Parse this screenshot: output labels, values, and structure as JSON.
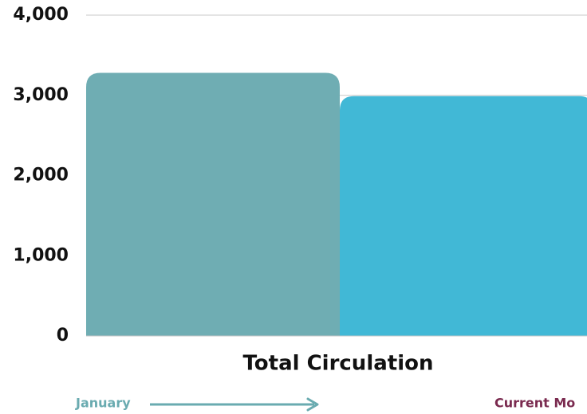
{
  "chart_data": {
    "type": "bar",
    "categories": [
      "Total Circulation"
    ],
    "series": [
      {
        "name": "January",
        "color": "#6fadb3",
        "values": [
          3280
        ]
      },
      {
        "name": "Current Mo",
        "color": "#41b8d6",
        "values": [
          2990
        ]
      }
    ],
    "ylim": [
      0,
      4000
    ],
    "yticks": [
      0,
      {
        "value": 1000,
        "label": "1,000"
      },
      {
        "value": 2000,
        "label": "2,000"
      },
      {
        "value": 3000,
        "label": "3,000"
      },
      {
        "value": 4000,
        "label": "4,000"
      }
    ],
    "grid": true
  }
}
